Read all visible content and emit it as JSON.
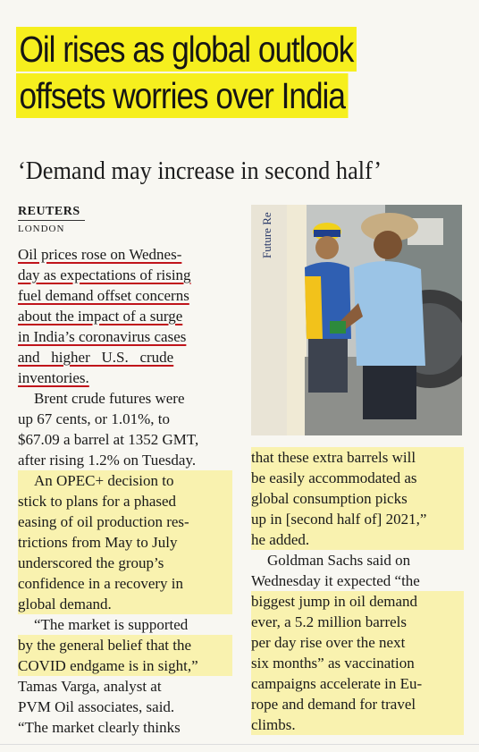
{
  "headline": {
    "line1": "Oil rises as global outlook",
    "line2": "offsets worries over India"
  },
  "deck": "‘Demand may increase in second half’",
  "byline": "REUTERS",
  "dateline": "LONDON",
  "left_column": {
    "lines": [
      "Oil prices rose on Wednes-",
      "day as expectations of rising",
      "fuel demand offset concerns",
      "about the impact of a surge",
      "in India’s coronavirus cases",
      "and   higher   U.S.   crude",
      "inventories.",
      "Brent crude futures were",
      "up 67 cents, or 1.01%, to",
      "$67.09 a barrel at 1352 GMT,",
      "after rising 1.2% on Tuesday.",
      "An OPEC+ decision to",
      "stick to plans for a phased",
      "easing of oil production res-",
      "trictions from May to July",
      "underscored the group’s",
      "confidence in a recovery in",
      "global demand.",
      "“The market is supported",
      "by the general belief that the",
      "COVID endgame is in sight,”",
      "Tamas Varga, analyst at",
      "PVM Oil associates, said.",
      "“The market clearly thinks"
    ]
  },
  "right_column": {
    "lines": [
      "that these extra barrels will",
      "be easily accommodated as",
      "global consumption picks",
      "up in [second half of] 2021,”",
      "he added.",
      "Goldman Sachs said on",
      "Wednesday it expected “the",
      "biggest jump in oil demand",
      "ever, a 5.2 million barrels",
      "per day rise over the next",
      "six months” as vaccination",
      "campaigns accelerate in Eu-",
      "rope and demand for travel",
      "climbs."
    ]
  },
  "photo": {
    "description_icon": "fuel-station-photo",
    "sign_text": "Future Re"
  },
  "colors": {
    "headline_highlight": "#f6ef1e",
    "underline": "#c0141b",
    "text_highlight": "#faee78"
  }
}
